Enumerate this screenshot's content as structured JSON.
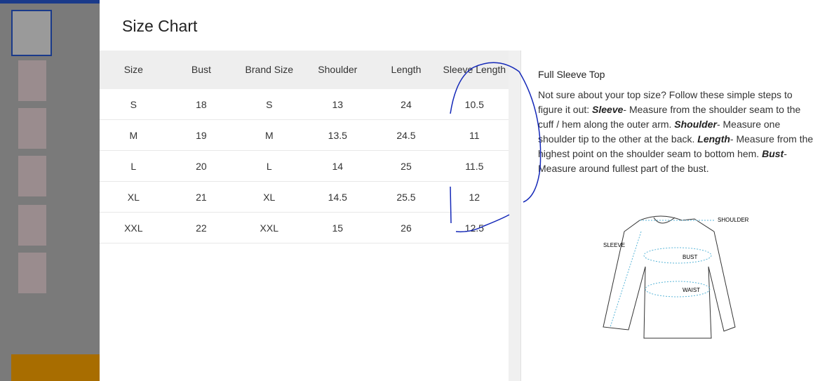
{
  "header": {
    "title": "Size Chart"
  },
  "table": {
    "columns": [
      "Size",
      "Bust",
      "Brand Size",
      "Shoulder",
      "Length",
      "Sleeve Length"
    ],
    "rows": [
      [
        "S",
        "18",
        "S",
        "13",
        "24",
        "10.5"
      ],
      [
        "M",
        "19",
        "M",
        "13.5",
        "24.5",
        "11"
      ],
      [
        "L",
        "20",
        "L",
        "14",
        "25",
        "11.5"
      ],
      [
        "XL",
        "21",
        "XL",
        "14.5",
        "25.5",
        "12"
      ],
      [
        "XXL",
        "22",
        "XXL",
        "15",
        "26",
        "12.5"
      ]
    ]
  },
  "guide": {
    "title": "Full Sleeve Top",
    "intro": "Not sure about your top size? Follow these simple steps to figure it out:",
    "steps": [
      {
        "term": "Sleeve",
        "text": "- Measure from the shoulder seam to the cuff / hem along the outer arm."
      },
      {
        "term": "Shoulder",
        "text": "- Measure one shoulder tip to the other at the back."
      },
      {
        "term": "Length",
        "text": "- Measure from the highest point on the shoulder seam to bottom hem."
      },
      {
        "term": "Bust",
        "text": "- Measure around fullest part of the bust."
      }
    ],
    "diagram_labels": {
      "shoulder": "SHOULDER",
      "sleeve": "SLEEVE",
      "bust": "BUST",
      "waist": "WAIST"
    }
  }
}
